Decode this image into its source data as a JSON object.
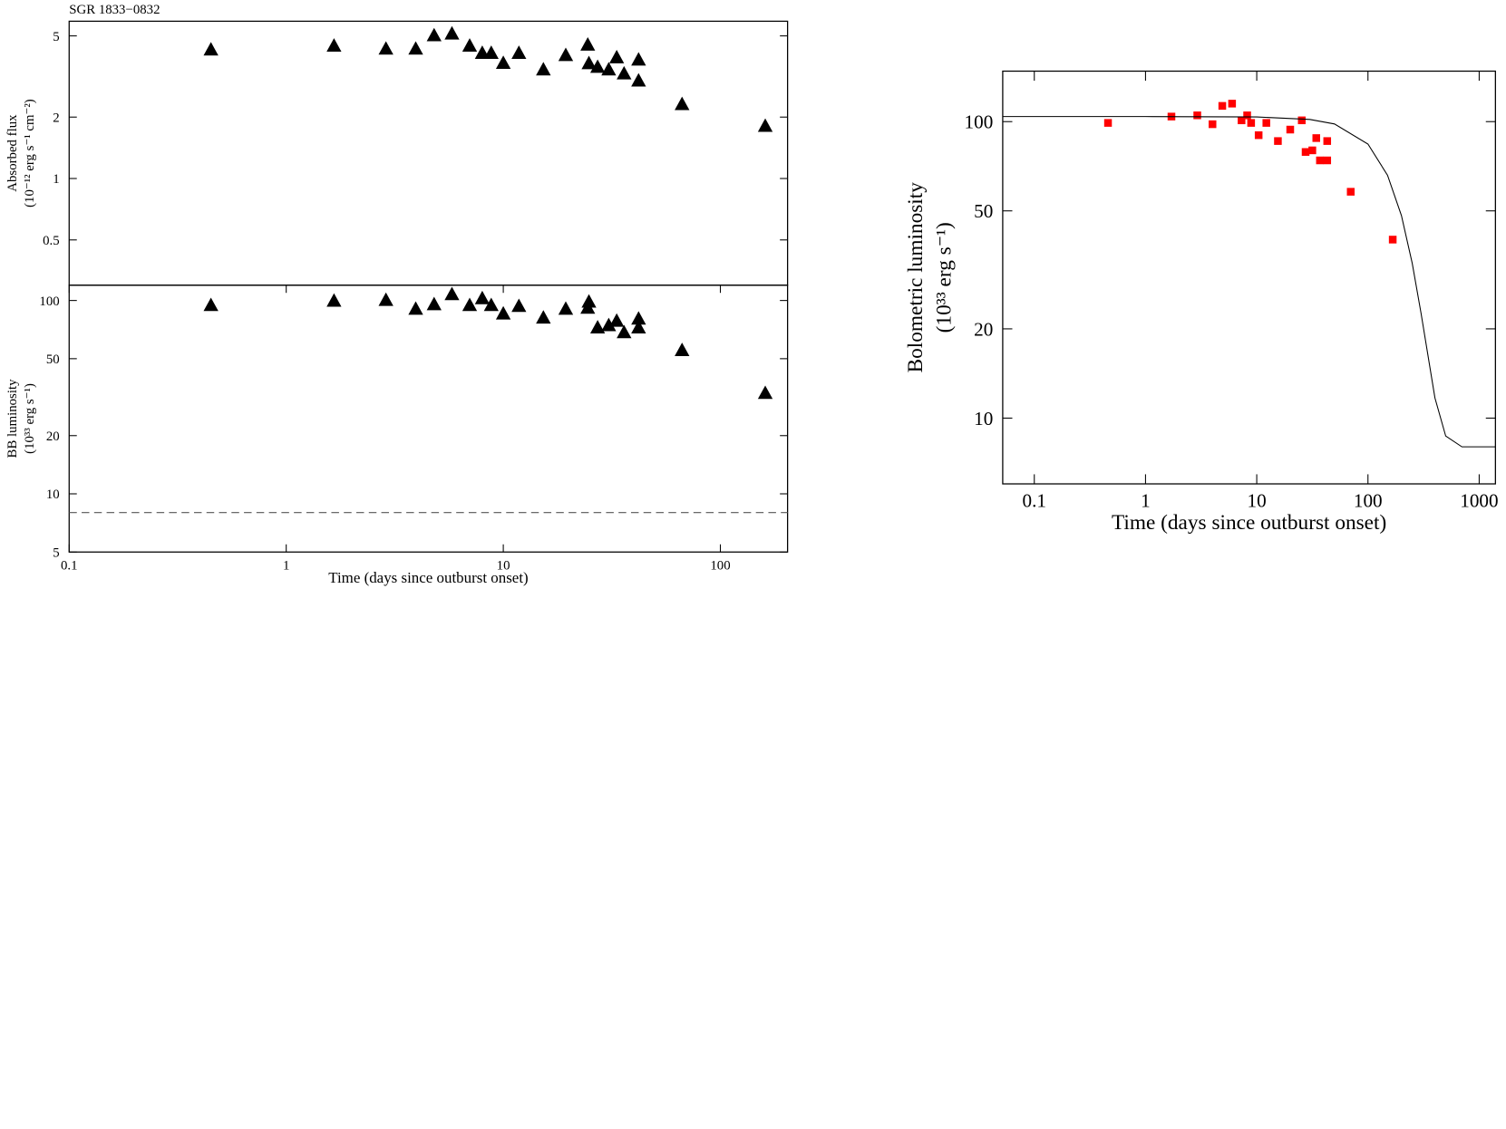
{
  "chart_data": [
    {
      "type": "scatter",
      "title": "SGR 1833−0832",
      "ylabel": [
        "Absorbed flux",
        "(10⁻¹² erg s⁻¹ cm⁻²)"
      ],
      "xscale": "log",
      "yscale": "log",
      "xlim": [
        0.1,
        204
      ],
      "ylim": [
        0.3,
        5.9
      ],
      "yticks": [
        0.5,
        1,
        2,
        5
      ],
      "series": [
        {
          "color": "#000000",
          "marker": "triangle",
          "x": [
            0.45,
            1.66,
            2.88,
            3.95,
            4.8,
            5.8,
            7.0,
            8.0,
            8.8,
            10,
            11.8,
            15.3,
            19.4,
            24.5,
            24.8,
            27.2,
            30.6,
            33.3,
            36,
            42,
            42,
            66.6,
            161
          ],
          "values": [
            4.26,
            4.45,
            4.3,
            4.3,
            5.0,
            5.1,
            4.45,
            4.1,
            4.1,
            3.66,
            4.1,
            3.4,
            4.0,
            4.5,
            3.65,
            3.5,
            3.4,
            3.9,
            3.25,
            3.8,
            3.0,
            2.3,
            1.8
          ]
        }
      ]
    },
    {
      "type": "scatter",
      "ylabel": [
        "BB luminosity",
        "(10³³ erg s⁻¹)"
      ],
      "xlabel": "Time (days since outburst onset)",
      "xscale": "log",
      "yscale": "log",
      "xlim": [
        0.1,
        204
      ],
      "xticks": [
        0.1,
        1,
        10,
        100
      ],
      "ylim": [
        5,
        120
      ],
      "yticks": [
        5,
        10,
        20,
        50,
        100
      ],
      "hline": 8,
      "series": [
        {
          "color": "#000000",
          "marker": "triangle",
          "x": [
            0.45,
            1.66,
            2.88,
            3.95,
            4.8,
            5.8,
            7.0,
            8.0,
            8.8,
            10,
            11.8,
            15.3,
            19.4,
            24.5,
            24.8,
            27.2,
            30.6,
            33.3,
            36,
            42,
            42,
            66.6,
            161
          ],
          "values": [
            94,
            99,
            100,
            90,
            95,
            107,
            94,
            102,
            94,
            85,
            93,
            81,
            90,
            91,
            98,
            72,
            74,
            78,
            68,
            80,
            72,
            55,
            33
          ]
        }
      ]
    },
    {
      "type": "scatter",
      "ylabel": [
        "Bolometric luminosity",
        "(10³³ erg s⁻¹)"
      ],
      "xlabel": "Time (days since outburst onset)",
      "xscale": "log",
      "yscale": "log",
      "xlim": [
        0.052,
        1400
      ],
      "xticks": [
        0.1,
        1,
        10,
        100,
        1000
      ],
      "ylim": [
        6,
        148
      ],
      "yticks": [
        10,
        20,
        50,
        100
      ],
      "series": [
        {
          "color": "#ff0000",
          "marker": "square",
          "x": [
            0.46,
            1.71,
            2.92,
            4.0,
            4.9,
            6.0,
            7.3,
            8.2,
            8.9,
            10.4,
            12.2,
            15.5,
            20,
            25.4,
            27.5,
            31.6,
            34.3,
            37,
            43,
            43,
            70,
            167
          ],
          "values": [
            99,
            104,
            105,
            98,
            113,
            115,
            101,
            105,
            99,
            90,
            99,
            86,
            94,
            101,
            79,
            80,
            88,
            74,
            74,
            86,
            58,
            40
          ]
        },
        {
          "color": "#000000",
          "marker": "line",
          "x": [
            0.052,
            1,
            10,
            30,
            50,
            100,
            150,
            200,
            250,
            300,
            400,
            500,
            700,
            1400
          ],
          "values": [
            104,
            104,
            103.7,
            101.7,
            98.2,
            84,
            65.9,
            48.2,
            33.3,
            22.6,
            11.7,
            8.7,
            8.0,
            8.0
          ]
        }
      ]
    }
  ]
}
